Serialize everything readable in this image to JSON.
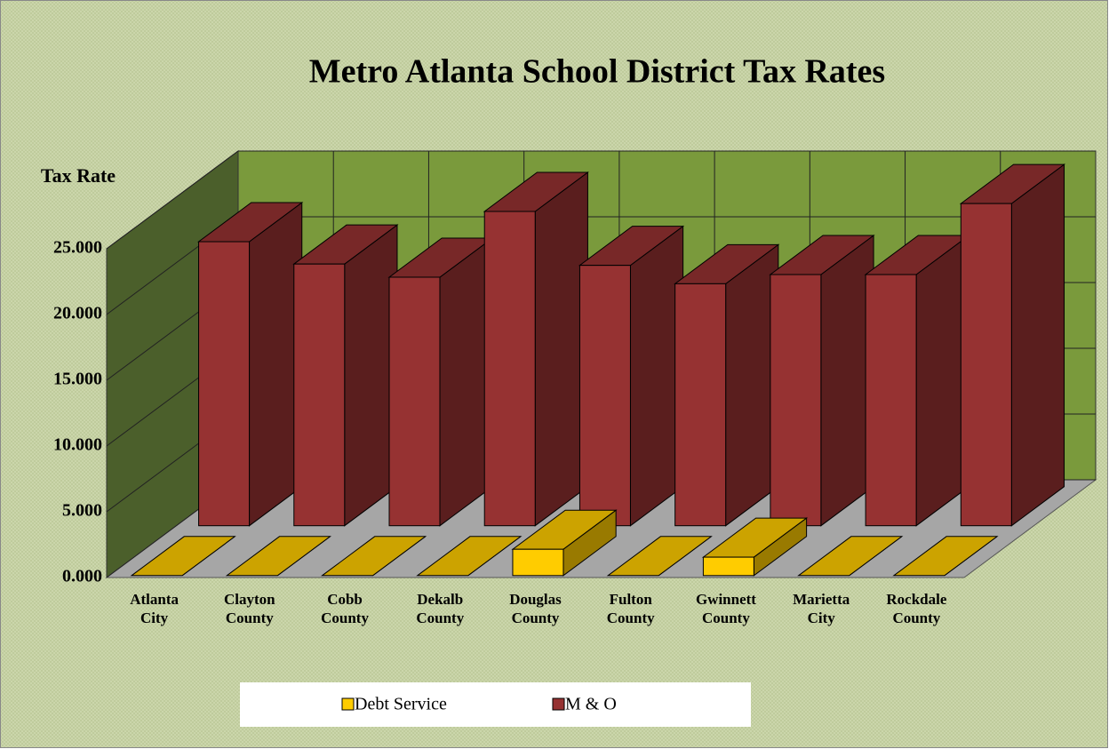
{
  "chart_data": {
    "type": "bar3d",
    "title": "Metro Atlanta School District Tax Rates",
    "y_label": "Tax Rate",
    "categories": [
      "Atlanta City",
      "Clayton County",
      "Cobb County",
      "Dekalb County",
      "Douglas County",
      "Fulton County",
      "Gwinnett County",
      "Marietta City",
      "Rockdale County"
    ],
    "series": [
      {
        "name": "Debt Service",
        "color": "#ffcc00",
        "values": [
          0,
          0,
          0,
          0,
          2.0,
          0,
          1.4,
          0,
          0
        ]
      },
      {
        "name": "M & O",
        "color": "#963232",
        "values": [
          21.6,
          19.9,
          18.9,
          23.9,
          19.8,
          18.4,
          19.1,
          19.1,
          24.5
        ]
      }
    ],
    "ylim": [
      0,
      25
    ],
    "yticks": [
      {
        "value": 0,
        "label": "0.000"
      },
      {
        "value": 5,
        "label": "5.000"
      },
      {
        "value": 10,
        "label": "10.000"
      },
      {
        "value": 15,
        "label": "15.000"
      },
      {
        "value": 20,
        "label": "20.000"
      },
      {
        "value": 25,
        "label": "25.000"
      }
    ],
    "grid": true,
    "legend": "bottom"
  }
}
